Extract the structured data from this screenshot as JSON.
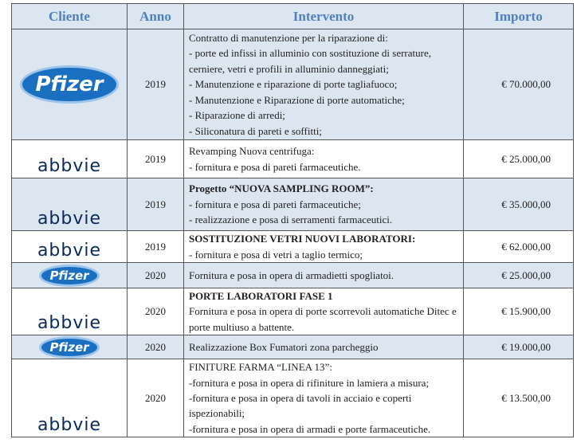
{
  "header": {
    "cliente": "Cliente",
    "anno": "Anno",
    "intervento": "Intervento",
    "importo": "Importo"
  },
  "rows": [
    {
      "cliente": "Pfizer",
      "anno": "2019",
      "lines": [
        "Contratto di manutenzione per la riparazione di:",
        "- porte ed infissi in alluminio con sostituzione di  serrature, cerniere, vetri e profili in alluminio danneggiati;",
        "- Manutenzione e riparazione di porte tagliafuoco;",
        "- Manutenzione e Riparazione di porte automatiche;",
        "- Riparazione di arredi;",
        "- Siliconatura di pareti e soffitti;"
      ],
      "importo": "€ 70.000,00"
    },
    {
      "cliente": "abbvie",
      "anno": "2019",
      "lines": [
        "Revamping  Nuova centrifuga:",
        "- fornitura e posa di pareti farmaceutiche."
      ],
      "importo": "€ 25.000,00"
    },
    {
      "cliente": "abbvie",
      "anno": "2019",
      "title": "Progetto “NUOVA SAMPLING ROOM”:",
      "lines": [
        "- fornitura e posa di pareti farmaceutiche;",
        "- realizzazione e posa di serramenti farmaceutici."
      ],
      "importo": "€ 35.000,00"
    },
    {
      "cliente": "abbvie",
      "anno": "2019",
      "title": "SOSTITUZIONE VETRI NUOVI LABORATORI:",
      "lines": [
        "- fornitura e posa di vetri a taglio termico;"
      ],
      "importo": "€ 62.000,00"
    },
    {
      "cliente": "Pfizer",
      "anno": "2020",
      "lines": [
        "Fornitura e posa in opera di armadietti spogliatoi."
      ],
      "importo": "€ 25.000,00"
    },
    {
      "cliente": "abbvie",
      "anno": "2020",
      "title": "PORTE LABORATORI FASE 1",
      "lines": [
        "Fornitura e posa in opera di porte scorrevoli automatiche Ditec e porte multiuso a battente."
      ],
      "importo": "€ 15.900,00"
    },
    {
      "cliente": "Pfizer",
      "anno": "2020",
      "lines": [
        "Realizzazione Box Fumatori zona parcheggio"
      ],
      "importo": "€ 19.000,00"
    },
    {
      "cliente": "abbvie",
      "anno": "2020",
      "lines": [
        "FINITURE FARMA “LINEA 13”:",
        "-fornitura e posa in opera di rifiniture in lamiera a misura;",
        "-fornitura e posa in opera di tavoli in acciaio e coperti ispezionabili;",
        "-fornitura e posa in opera di armadi e porte farmaceutiche."
      ],
      "importo": "€ 13.500,00"
    }
  ]
}
